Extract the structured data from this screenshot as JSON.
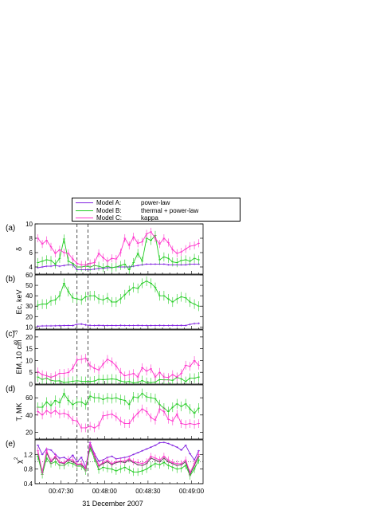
{
  "legend": [
    {
      "model": "Model A:",
      "desc": "power-law",
      "color": "#8020e0"
    },
    {
      "model": "Model B:",
      "desc": "thermal + power-law",
      "color": "#22cc22"
    },
    {
      "model": "Model C:",
      "desc": "kappa",
      "color": "#ff33cc"
    }
  ],
  "colors": {
    "A": "#8020e0",
    "B": "#22cc22",
    "C": "#ff33cc",
    "raw": "#444444"
  },
  "chart_data": {
    "type": "line",
    "xlabel": "31 December 2007",
    "x_tick_labels": [
      "00:47:30",
      "00:48:00",
      "00:48:30",
      "00:49:00"
    ],
    "x_ticks_sec": [
      30,
      60,
      90,
      120
    ],
    "xlim_sec": [
      12,
      128
    ],
    "x_note": "seconds after 00:47:00 UT",
    "x_sec": [
      14,
      17,
      20,
      23,
      26,
      29,
      32,
      35,
      38,
      41,
      44,
      47,
      50,
      53,
      56,
      59,
      62,
      65,
      68,
      71,
      74,
      77,
      80,
      83,
      86,
      89,
      92,
      95,
      98,
      101,
      104,
      107,
      110,
      113,
      116,
      119,
      122,
      125
    ],
    "vlines_sec": [
      41,
      48.5
    ],
    "panels": [
      {
        "label": "(a)",
        "ylabel": "δ",
        "ylim": [
          3,
          10
        ],
        "yticks": [
          4,
          6,
          8,
          10
        ],
        "series": [
          {
            "key": "A",
            "values": [
              3.9,
              4.0,
              4.1,
              4.1,
              4.2,
              4.1,
              4.2,
              4.3,
              4.3,
              3.6,
              3.6,
              3.6,
              3.6,
              3.7,
              3.8,
              3.8,
              3.9,
              3.9,
              4.0,
              4.0,
              4.0,
              4.0,
              4.1,
              4.2,
              4.3,
              4.4,
              4.4,
              4.4,
              4.4,
              4.4,
              4.3,
              4.3,
              4.3,
              4.3,
              4.3,
              4.4,
              4.4,
              4.4
            ]
          },
          {
            "key": "B",
            "values": [
              4.6,
              4.8,
              5.0,
              4.9,
              4.4,
              5.2,
              7.9,
              4.8,
              4.5,
              4.0,
              4.0,
              4.1,
              4.0,
              4.2,
              4.1,
              3.9,
              4.1,
              3.9,
              4.0,
              4.2,
              4.4,
              3.6,
              4.6,
              5.9,
              4.8,
              8.0,
              7.7,
              8.4,
              5.0,
              5.4,
              5.2,
              4.7,
              4.6,
              4.9,
              5.0,
              4.8,
              5.2,
              5.0
            ]
          },
          {
            "key": "C",
            "values": [
              8.0,
              7.2,
              7.7,
              6.8,
              5.9,
              6.4,
              6.0,
              5.9,
              5.1,
              4.5,
              4.3,
              4.3,
              4.5,
              4.6,
              5.9,
              5.3,
              4.8,
              5.2,
              5.1,
              6.0,
              8.0,
              7.0,
              8.2,
              7.3,
              7.5,
              8.6,
              8.9,
              8.0,
              7.2,
              8.0,
              7.4,
              6.4,
              5.9,
              6.1,
              6.5,
              6.9,
              7.0,
              7.3
            ]
          }
        ]
      },
      {
        "label": "(b)",
        "ylabel": "Ec, keV",
        "ylim": [
          8,
          60
        ],
        "yticks": [
          10,
          20,
          30,
          40,
          50,
          60
        ],
        "series": [
          {
            "key": "A",
            "values": [
              10.8,
              11.0,
              11.1,
              11.1,
              11.2,
              11.3,
              11.4,
              11.5,
              11.4,
              12.6,
              12.8,
              12.0,
              11.6,
              11.5,
              11.6,
              11.5,
              11.4,
              11.5,
              11.4,
              11.6,
              11.5,
              11.5,
              11.4,
              11.6,
              11.5,
              11.5,
              11.5,
              11.4,
              11.6,
              11.5,
              11.5,
              11.6,
              11.5,
              11.6,
              11.5,
              12.5,
              13.3,
              13.5
            ]
          },
          {
            "key": "B",
            "values": [
              31,
              32,
              32,
              35,
              36,
              40,
              52,
              44,
              38,
              37,
              36,
              39,
              40,
              40,
              37,
              36,
              38,
              34,
              34,
              37,
              41,
              45,
              48,
              47,
              52,
              54,
              52,
              48,
              40,
              40,
              37,
              34,
              37,
              39,
              38,
              34,
              32,
              30
            ]
          }
        ]
      },
      {
        "label": "(c)",
        "ylabel": "EM, 10 cm",
        "ylim": [
          0,
          23
        ],
        "yticks": [
          0,
          5,
          10,
          15,
          20
        ],
        "series": [
          {
            "key": "B",
            "values": [
              3.0,
              2.0,
              2.5,
              1.6,
              1.3,
              1.4,
              0.7,
              0.9,
              1.2,
              1.4,
              1.2,
              1.1,
              1.1,
              1.3,
              2.0,
              1.9,
              2.0,
              2.2,
              2.0,
              1.3,
              0.9,
              1.1,
              0.5,
              0.8,
              1.5,
              0.7,
              0.6,
              0.9,
              1.9,
              1.8,
              1.8,
              1.6,
              2.8,
              2.2,
              1.1,
              2.5,
              2.5,
              3.0
            ]
          },
          {
            "key": "C",
            "values": [
              5.2,
              4.0,
              3.5,
              2.9,
              3.5,
              4.6,
              4.6,
              4.9,
              6.7,
              10.2,
              10.5,
              11.0,
              7.8,
              6.7,
              6.0,
              8.5,
              10.5,
              9.5,
              7.7,
              5.0,
              3.5,
              4.0,
              4.5,
              3.0,
              7.0,
              5.5,
              6.5,
              3.0,
              5.0,
              3.0,
              2.8,
              4.0,
              3.0,
              4.5,
              8.0,
              7.5,
              10.0,
              8.0
            ]
          }
        ]
      },
      {
        "label": "(d)",
        "ylabel": "T, MK",
        "ylim": [
          12,
          75
        ],
        "yticks": [
          20,
          40,
          60
        ],
        "series": [
          {
            "key": "B",
            "values": [
              49,
              49,
              55,
              51,
              57,
              54,
              65,
              57,
              52,
              55,
              55,
              52,
              62,
              60,
              60,
              58,
              60,
              59,
              60,
              58,
              57,
              52,
              61,
              60,
              65,
              61,
              60,
              59,
              52,
              48,
              44,
              49,
              53,
              50,
              53,
              47,
              42,
              48
            ]
          },
          {
            "key": "C",
            "values": [
              44,
              40,
              45,
              42,
              45,
              41,
              42,
              40,
              34,
              33,
              25,
              25,
              27,
              25,
              28,
              39,
              40,
              41,
              38,
              33,
              30,
              30,
              37,
              42,
              47,
              44,
              37,
              34,
              47,
              44,
              35,
              33,
              41,
              30,
              29,
              30,
              29,
              30
            ]
          }
        ]
      },
      {
        "label": "(e)",
        "ylabel": "χ",
        "ylim": [
          0.4,
          1.6
        ],
        "yticks": [
          0.4,
          0.8,
          1.2
        ],
        "ref_line": 1.0,
        "series": [
          {
            "key": "A",
            "values": [
              1.45,
              1.2,
              1.35,
              1.32,
              1.2,
              1.1,
              1.12,
              1.05,
              1.18,
              1.0,
              1.12,
              0.85,
              1.52,
              1.22,
              1.02,
              1.05,
              1.12,
              1.15,
              1.08,
              1.1,
              1.12,
              1.15,
              1.2,
              1.25,
              1.3,
              1.35,
              1.4,
              1.45,
              1.52,
              1.53,
              1.5,
              1.45,
              1.4,
              1.32,
              1.45,
              1.22,
              1.05,
              1.3
            ]
          },
          {
            "key": "raw",
            "values": [
              1.2,
              0.7,
              1.25,
              1.0,
              1.12,
              0.98,
              0.95,
              1.05,
              1.0,
              0.92,
              0.92,
              0.8,
              1.45,
              1.15,
              0.88,
              0.95,
              1.0,
              0.92,
              0.98,
              1.0,
              0.98,
              1.05,
              0.98,
              0.92,
              0.9,
              0.95,
              1.1,
              1.05,
              1.0,
              1.1,
              1.0,
              0.95,
              0.9,
              0.92,
              1.0,
              0.65,
              0.9,
              1.15
            ]
          },
          {
            "key": "B",
            "values": [
              1.15,
              0.65,
              1.1,
              0.95,
              1.0,
              0.9,
              0.9,
              0.98,
              0.95,
              0.88,
              0.88,
              0.75,
              1.38,
              1.1,
              0.78,
              0.85,
              0.82,
              0.8,
              0.75,
              0.8,
              0.85,
              0.78,
              0.72,
              0.72,
              0.75,
              0.8,
              0.88,
              0.95,
              0.92,
              0.98,
              0.9,
              0.85,
              0.8,
              0.82,
              0.9,
              0.62,
              0.8,
              1.05
            ]
          },
          {
            "key": "C",
            "values": [
              1.3,
              0.72,
              1.3,
              1.02,
              1.15,
              0.99,
              0.97,
              1.07,
              1.05,
              0.93,
              0.95,
              0.82,
              1.48,
              1.18,
              0.9,
              0.98,
              1.04,
              0.95,
              1.0,
              1.02,
              1.02,
              1.08,
              1.0,
              0.98,
              0.95,
              1.0,
              1.15,
              1.1,
              1.05,
              1.15,
              1.05,
              0.98,
              0.95,
              0.95,
              1.05,
              0.7,
              0.95,
              1.2
            ]
          }
        ]
      }
    ]
  }
}
